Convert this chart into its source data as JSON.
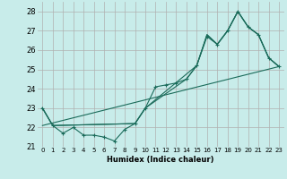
{
  "xlabel": "Humidex (Indice chaleur)",
  "bg_color": "#c8ecea",
  "grid_color": "#b0b0b0",
  "line_color": "#1a6b5a",
  "xlim": [
    -0.5,
    23.5
  ],
  "ylim": [
    21.0,
    28.5
  ],
  "yticks": [
    21,
    22,
    23,
    24,
    25,
    26,
    27,
    28
  ],
  "xticks": [
    0,
    1,
    2,
    3,
    4,
    5,
    6,
    7,
    8,
    9,
    10,
    11,
    12,
    13,
    14,
    15,
    16,
    17,
    18,
    19,
    20,
    21,
    22,
    23
  ],
  "series": [
    {
      "x": [
        0,
        1,
        2,
        3,
        4,
        5,
        6,
        7,
        8,
        9,
        10,
        11,
        12,
        13,
        14,
        15,
        16,
        17,
        18,
        19,
        20,
        21,
        22,
        23
      ],
      "y": [
        23.0,
        22.1,
        21.7,
        22.0,
        21.6,
        21.6,
        21.5,
        21.3,
        21.9,
        22.2,
        23.0,
        24.1,
        24.2,
        24.3,
        24.5,
        25.2,
        26.7,
        26.3,
        27.0,
        28.0,
        27.2,
        26.8,
        25.6,
        25.15
      ],
      "marker": true
    },
    {
      "x": [
        0,
        1,
        9,
        10,
        15,
        16,
        17,
        18,
        19,
        20,
        21,
        22,
        23
      ],
      "y": [
        23.0,
        22.1,
        22.2,
        23.0,
        25.2,
        26.8,
        26.3,
        27.0,
        28.0,
        27.2,
        26.8,
        25.6,
        25.15
      ],
      "marker": false
    },
    {
      "x": [
        0,
        23
      ],
      "y": [
        22.1,
        25.15
      ],
      "marker": false
    },
    {
      "x": [
        0,
        1,
        9,
        10,
        14,
        15,
        16,
        17,
        18,
        19,
        20,
        21,
        22,
        23
      ],
      "y": [
        23.0,
        22.1,
        22.2,
        23.0,
        24.5,
        25.2,
        26.8,
        26.3,
        27.0,
        28.0,
        27.2,
        26.8,
        25.6,
        25.15
      ],
      "marker": false
    }
  ]
}
